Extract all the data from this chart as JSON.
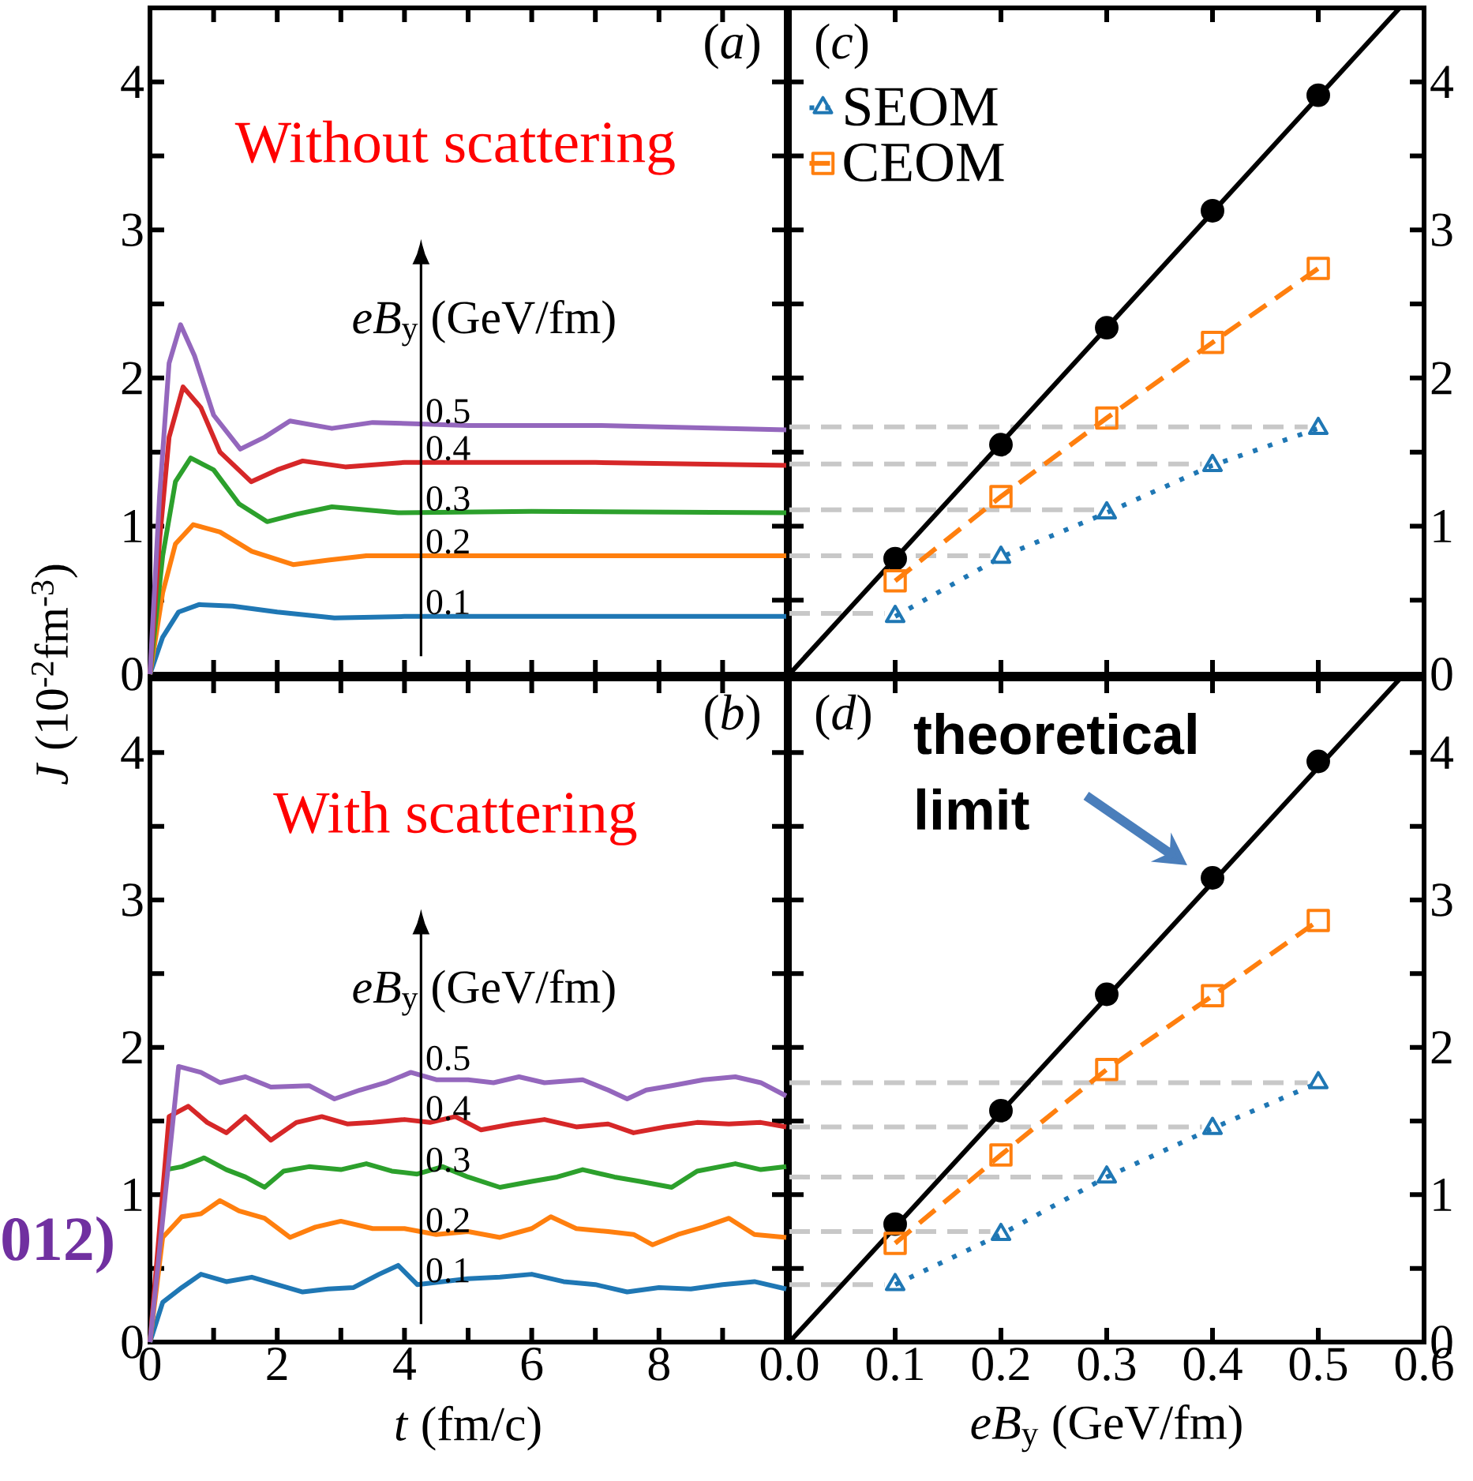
{
  "chart_data": [
    {
      "type": "line",
      "title": "Without scattering",
      "ylabel": "*J* (10$^{-2}$fm$^{-3}$)",
      "legend_title": "*eB*$_{y}$ (GeV/fm)",
      "annotations": [
        "(*a*)"
      ],
      "xlim": [
        0,
        10
      ],
      "ylim": [
        0,
        4.5
      ],
      "tick_labels": "y",
      "xticks": [
        0,
        1,
        2,
        3,
        4,
        5,
        6,
        7,
        8,
        9,
        10
      ],
      "yticks": [
        0,
        {
          "value": 0.5,
          "label": null
        },
        1,
        {
          "value": 1.5,
          "label": null
        },
        2,
        {
          "value": 2.5,
          "label": null
        },
        3,
        {
          "value": 3.5,
          "label": null
        },
        4
      ],
      "series": [
        {
          "name": "0.1",
          "color": "#1f77b4",
          "x": [
            0,
            0.2,
            0.45,
            0.77,
            1.3,
            2.0,
            2.9,
            4,
            6,
            10
          ],
          "values": [
            0,
            0.25,
            0.42,
            0.47,
            0.46,
            0.42,
            0.38,
            0.39,
            0.39,
            0.39
          ]
        },
        {
          "name": "0.2",
          "color": "#ff7f0e",
          "x": [
            0,
            0.2,
            0.4,
            0.68,
            1.1,
            1.6,
            2.25,
            2.8,
            3.4,
            5,
            10
          ],
          "values": [
            0,
            0.55,
            0.88,
            1.01,
            0.96,
            0.83,
            0.74,
            0.77,
            0.8,
            0.8,
            0.8
          ]
        },
        {
          "name": "0.3",
          "color": "#2ca02c",
          "x": [
            0,
            0.2,
            0.4,
            0.64,
            1.0,
            1.4,
            1.84,
            2.3,
            2.86,
            3.9,
            6,
            10
          ],
          "values": [
            0,
            0.8,
            1.3,
            1.46,
            1.38,
            1.15,
            1.03,
            1.08,
            1.13,
            1.09,
            1.1,
            1.09
          ]
        },
        {
          "name": "0.4",
          "color": "#d62728",
          "x": [
            0,
            0.15,
            0.3,
            0.52,
            0.8,
            1.1,
            1.59,
            2.0,
            2.4,
            3.07,
            4,
            7,
            10
          ],
          "values": [
            0,
            0.9,
            1.6,
            1.94,
            1.8,
            1.5,
            1.3,
            1.38,
            1.44,
            1.4,
            1.43,
            1.43,
            1.41
          ]
        },
        {
          "name": "0.5",
          "color": "#9467bd",
          "x": [
            0,
            0.15,
            0.3,
            0.48,
            0.7,
            1.0,
            1.42,
            1.8,
            2.2,
            2.86,
            3.5,
            5,
            7,
            10
          ],
          "values": [
            0,
            1.2,
            2.1,
            2.36,
            2.15,
            1.75,
            1.52,
            1.6,
            1.71,
            1.66,
            1.7,
            1.68,
            1.68,
            1.65
          ]
        }
      ]
    },
    {
      "type": "line",
      "annotations": [
        "(*c*)"
      ],
      "legend": "top left",
      "xlim": [
        0,
        0.6
      ],
      "ylim": [
        0,
        4.5
      ],
      "tick_labels": "y",
      "xticks": [
        0,
        0.1,
        0.2,
        0.3,
        0.4,
        0.5,
        0.6
      ],
      "yticks": [
        0,
        {
          "value": 0.5,
          "label": null
        },
        1,
        {
          "value": 1.5,
          "label": null
        },
        2,
        {
          "value": 2.5,
          "label": null
        },
        3,
        {
          "value": 3.5,
          "label": null
        },
        4
      ],
      "series": [
        {
          "color": "#c8c8c8",
          "marker": "none",
          "line_style": "dashed",
          "x": [
            0,
            0.49
          ],
          "values": [
            1.67,
            1.67
          ]
        },
        {
          "color": "#c8c8c8",
          "marker": "none",
          "line_style": "dashed",
          "x": [
            0,
            0.39
          ],
          "values": [
            1.42,
            1.42
          ]
        },
        {
          "color": "#c8c8c8",
          "marker": "none",
          "line_style": "dashed",
          "x": [
            0,
            0.29
          ],
          "values": [
            1.11,
            1.11
          ]
        },
        {
          "color": "#c8c8c8",
          "marker": "none",
          "line_style": "dashed",
          "x": [
            0,
            0.19
          ],
          "values": [
            0.8,
            0.8
          ]
        },
        {
          "color": "#c8c8c8",
          "marker": "none",
          "line_style": "dashed",
          "x": [
            0,
            0.09
          ],
          "values": [
            0.41,
            0.41
          ]
        },
        {
          "color": "#000000",
          "marker": "none",
          "line_style": "solid",
          "x": [
            0,
            0.577
          ],
          "values": [
            0,
            4.5
          ]
        },
        {
          "type": "scatter",
          "color": "#000000",
          "marker": "circle",
          "x": [
            0.1,
            0.2,
            0.3,
            0.4,
            0.5
          ],
          "values": [
            0.78,
            1.55,
            2.34,
            3.13,
            3.91
          ]
        },
        {
          "name": "SEOM",
          "color": "#1f77b4",
          "marker": "triangle",
          "line_style": "dotted",
          "x": [
            0.1,
            0.2,
            0.3,
            0.4,
            0.5
          ],
          "values": [
            0.39,
            0.79,
            1.09,
            1.41,
            1.66
          ]
        },
        {
          "name": "CEOM",
          "color": "#ff7f0e",
          "marker": "square",
          "line_style": "dashed",
          "x": [
            0.1,
            0.2,
            0.3,
            0.4,
            0.5
          ],
          "values": [
            0.63,
            1.2,
            1.73,
            2.24,
            2.74
          ]
        }
      ]
    },
    {
      "type": "line",
      "title": "With scattering",
      "xlabel": "*t* (fm/c)",
      "legend_title": "*eB*$_{y}$ (GeV/fm)",
      "annotations": [
        "(*b*)",
        "012)"
      ],
      "xlim": [
        0,
        10
      ],
      "ylim": [
        0,
        4.5
      ],
      "xticks": [
        0,
        {
          "value": 1,
          "label": null
        },
        2,
        {
          "value": 3,
          "label": null
        },
        4,
        {
          "value": 5,
          "label": null
        },
        6,
        {
          "value": 7,
          "label": null
        },
        8,
        {
          "value": 9,
          "label": null
        },
        {
          "value": 10,
          "label": null
        }
      ],
      "yticks": [
        0,
        {
          "value": 0.5,
          "label": null
        },
        1,
        {
          "value": 1.5,
          "label": null
        },
        2,
        {
          "value": 2.5,
          "label": null
        },
        3,
        {
          "value": 3.5,
          "label": null
        },
        4
      ],
      "series": [
        {
          "name": "0.1",
          "color": "#1f77b4",
          "x": [
            0,
            0.2,
            0.5,
            0.8,
            1.2,
            1.6,
            2.0,
            2.4,
            2.8,
            3.2,
            3.6,
            3.9,
            4.2,
            4.6,
            5.0,
            5.5,
            6.0,
            6.5,
            7.0,
            7.5,
            8.0,
            8.5,
            9.0,
            9.5,
            10
          ],
          "values": [
            0,
            0.27,
            0.37,
            0.46,
            0.41,
            0.44,
            0.39,
            0.34,
            0.36,
            0.37,
            0.46,
            0.52,
            0.39,
            0.41,
            0.43,
            0.44,
            0.46,
            0.41,
            0.39,
            0.34,
            0.37,
            0.36,
            0.39,
            0.41,
            0.36
          ]
        },
        {
          "name": "0.2",
          "color": "#ff7f0e",
          "x": [
            0,
            0.2,
            0.5,
            0.8,
            1.1,
            1.4,
            1.8,
            2.2,
            2.6,
            3.0,
            3.5,
            4.0,
            4.5,
            5.0,
            5.5,
            6.0,
            6.3,
            6.7,
            7.2,
            7.6,
            7.9,
            8.3,
            8.7,
            9.1,
            9.5,
            10
          ],
          "values": [
            0,
            0.71,
            0.85,
            0.87,
            0.96,
            0.89,
            0.84,
            0.71,
            0.78,
            0.82,
            0.77,
            0.77,
            0.73,
            0.75,
            0.71,
            0.77,
            0.85,
            0.77,
            0.75,
            0.73,
            0.66,
            0.73,
            0.78,
            0.84,
            0.73,
            0.71
          ]
        },
        {
          "name": "0.3",
          "color": "#2ca02c",
          "x": [
            0,
            0.25,
            0.5,
            0.85,
            1.2,
            1.5,
            1.8,
            2.1,
            2.5,
            3.0,
            3.4,
            3.8,
            4.2,
            4.6,
            5.0,
            5.5,
            6.0,
            6.4,
            6.8,
            7.3,
            7.7,
            8.2,
            8.6,
            9.2,
            9.6,
            10
          ],
          "values": [
            0,
            1.17,
            1.19,
            1.25,
            1.17,
            1.12,
            1.05,
            1.16,
            1.19,
            1.17,
            1.21,
            1.16,
            1.14,
            1.19,
            1.12,
            1.05,
            1.09,
            1.12,
            1.17,
            1.12,
            1.09,
            1.05,
            1.16,
            1.21,
            1.17,
            1.19
          ]
        },
        {
          "name": "0.4",
          "color": "#d62728",
          "x": [
            0,
            0.3,
            0.6,
            0.9,
            1.2,
            1.5,
            1.9,
            2.3,
            2.7,
            3.1,
            3.5,
            4.0,
            4.4,
            4.8,
            5.2,
            5.7,
            6.2,
            6.7,
            7.2,
            7.6,
            8.1,
            8.6,
            9.1,
            9.6,
            10
          ],
          "values": [
            0,
            1.53,
            1.6,
            1.49,
            1.42,
            1.53,
            1.37,
            1.49,
            1.53,
            1.48,
            1.49,
            1.51,
            1.49,
            1.53,
            1.44,
            1.48,
            1.51,
            1.46,
            1.48,
            1.42,
            1.46,
            1.49,
            1.48,
            1.49,
            1.46
          ]
        },
        {
          "name": "0.5",
          "color": "#9467bd",
          "x": [
            0,
            0.45,
            0.8,
            1.1,
            1.5,
            1.9,
            2.5,
            2.9,
            3.3,
            3.7,
            4.1,
            4.5,
            5.0,
            5.4,
            5.8,
            6.2,
            6.8,
            7.2,
            7.5,
            7.8,
            8.2,
            8.7,
            9.2,
            9.6,
            10
          ],
          "values": [
            0,
            1.87,
            1.83,
            1.76,
            1.8,
            1.73,
            1.74,
            1.65,
            1.71,
            1.76,
            1.83,
            1.78,
            1.78,
            1.76,
            1.8,
            1.76,
            1.78,
            1.71,
            1.65,
            1.71,
            1.74,
            1.78,
            1.8,
            1.76,
            1.67
          ]
        }
      ]
    },
    {
      "type": "line",
      "xlabel": "*eB*$_{y}$ (GeV/fm)",
      "annotations": [
        "(*d*)",
        {
          "text": "theoretical limit",
          "x": 0.4,
          "y": 3.15
        }
      ],
      "xlim": [
        0,
        0.6
      ],
      "ylim": [
        0,
        4.5
      ],
      "xticks": [
        {
          "value": 0,
          "label": "0.0"
        },
        {
          "value": 0.1,
          "label": "0.1"
        },
        {
          "value": 0.2,
          "label": "0.2"
        },
        {
          "value": 0.3,
          "label": "0.3"
        },
        {
          "value": 0.4,
          "label": "0.4"
        },
        {
          "value": 0.5,
          "label": "0.5"
        },
        {
          "value": 0.6,
          "label": "0.6"
        }
      ],
      "yticks": [
        0,
        {
          "value": 0.5,
          "label": null
        },
        1,
        {
          "value": 1.5,
          "label": null
        },
        2,
        {
          "value": 2.5,
          "label": null
        },
        3,
        {
          "value": 3.5,
          "label": null
        },
        4
      ],
      "series": [
        {
          "color": "#c8c8c8",
          "marker": "none",
          "line_style": "dashed",
          "x": [
            0,
            0.49
          ],
          "values": [
            1.76,
            1.76
          ]
        },
        {
          "color": "#c8c8c8",
          "marker": "none",
          "line_style": "dashed",
          "x": [
            0,
            0.39
          ],
          "values": [
            1.46,
            1.46
          ]
        },
        {
          "color": "#c8c8c8",
          "marker": "none",
          "line_style": "dashed",
          "x": [
            0,
            0.29
          ],
          "values": [
            1.12,
            1.12
          ]
        },
        {
          "color": "#c8c8c8",
          "marker": "none",
          "line_style": "dashed",
          "x": [
            0,
            0.19
          ],
          "values": [
            0.75,
            0.75
          ]
        },
        {
          "color": "#c8c8c8",
          "marker": "none",
          "line_style": "dashed",
          "x": [
            0,
            0.09
          ],
          "values": [
            0.39,
            0.39
          ]
        },
        {
          "color": "#000000",
          "marker": "none",
          "line_style": "solid",
          "x": [
            0,
            0.577
          ],
          "values": [
            0,
            4.5
          ]
        },
        {
          "type": "scatter",
          "color": "#000000",
          "marker": "circle",
          "x": [
            0.1,
            0.2,
            0.3,
            0.4,
            0.5
          ],
          "values": [
            0.8,
            1.57,
            2.36,
            3.15,
            3.94
          ]
        },
        {
          "color": "#1f77b4",
          "marker": "triangle",
          "line_style": "dotted",
          "x": [
            0.1,
            0.2,
            0.3,
            0.4,
            0.5
          ],
          "values": [
            0.39,
            0.73,
            1.12,
            1.45,
            1.76
          ]
        },
        {
          "color": "#ff7f0e",
          "marker": "square",
          "line_style": "dashed",
          "x": [
            0.1,
            0.2,
            0.3,
            0.4,
            0.5
          ],
          "values": [
            0.67,
            1.27,
            1.85,
            2.35,
            2.86
          ]
        }
      ]
    }
  ]
}
